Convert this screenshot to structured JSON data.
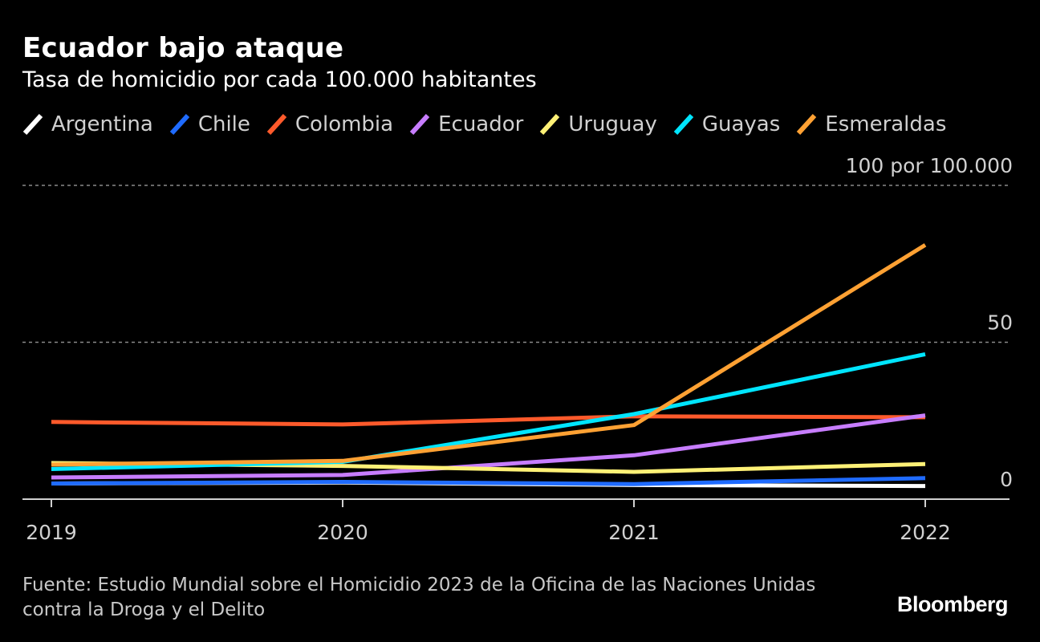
{
  "chart_data": {
    "type": "line",
    "title": "Ecuador bajo ataque",
    "subtitle": "Tasa de homicidio por cada 100.000 habitantes",
    "x": [
      "2019",
      "2020",
      "2021",
      "2022"
    ],
    "ylim": [
      0,
      100
    ],
    "yticks": [
      {
        "value": 0,
        "label": "0"
      },
      {
        "value": 50,
        "label": "50"
      },
      {
        "value": 100,
        "label": "100 por 100.000"
      }
    ],
    "grid": true,
    "legend_position": "top",
    "series": [
      {
        "name": "Argentina",
        "color": "#ffffff",
        "values": [
          5.0,
          5.3,
          4.5,
          4.2
        ]
      },
      {
        "name": "Chile",
        "color": "#1f6bff",
        "values": [
          5.0,
          5.5,
          4.8,
          6.7
        ]
      },
      {
        "name": "Colombia",
        "color": "#ff5a2b",
        "values": [
          24.6,
          23.8,
          26.4,
          26.1
        ]
      },
      {
        "name": "Ecuador",
        "color": "#c77dff",
        "values": [
          6.9,
          7.7,
          14.0,
          26.7
        ]
      },
      {
        "name": "Uruguay",
        "color": "#fff176",
        "values": [
          11.5,
          10.6,
          8.7,
          11.2
        ]
      },
      {
        "name": "Guayas",
        "color": "#00e5ff",
        "values": [
          9.6,
          11.9,
          27.1,
          46.2
        ]
      },
      {
        "name": "Esmeraldas",
        "color": "#ffa133",
        "values": [
          11.0,
          12.2,
          23.6,
          81.0
        ]
      }
    ]
  },
  "footer": {
    "source": "Fuente: Estudio Mundial sobre el Homicidio 2023 de la Oficina de las Naciones Unidas contra la Droga y el Delito"
  },
  "brand": {
    "name": "Bloomberg"
  }
}
